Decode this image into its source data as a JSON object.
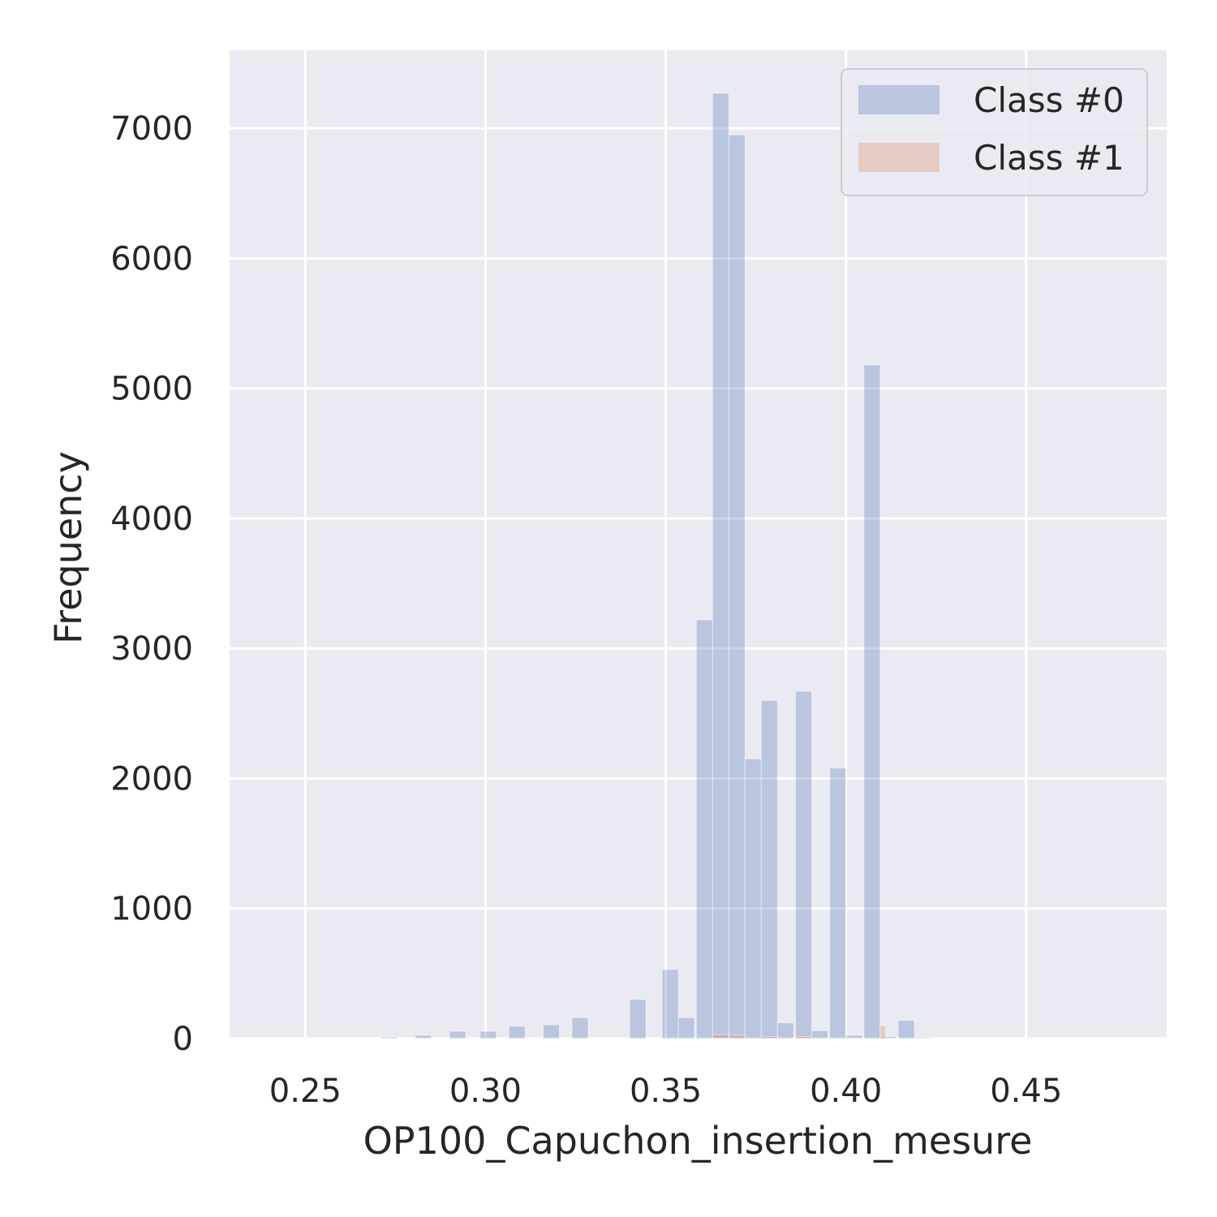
{
  "chart_data": {
    "type": "bar",
    "title": "",
    "xlabel": "OP100_Capuchon_insertion_mesure",
    "ylabel": "Frequency",
    "xlim": [
      0.229,
      0.489
    ],
    "ylim": [
      0,
      7600
    ],
    "xticks": [
      0.25,
      0.3,
      0.35,
      0.4,
      0.45
    ],
    "xtick_labels": [
      "0.25",
      "0.30",
      "0.35",
      "0.40",
      "0.45"
    ],
    "yticks": [
      0,
      1000,
      2000,
      3000,
      4000,
      5000,
      6000,
      7000
    ],
    "ytick_labels": [
      "0",
      "1000",
      "2000",
      "3000",
      "4000",
      "5000",
      "6000",
      "7000"
    ],
    "grid": true,
    "legend": "top-right",
    "series": [
      {
        "name": "Class #0",
        "color": "#4c72b0",
        "opacity": 0.3,
        "bins": [
          {
            "x0": 0.271,
            "x1": 0.2755,
            "y": 10
          },
          {
            "x0": 0.2805,
            "x1": 0.285,
            "y": 25
          },
          {
            "x0": 0.29,
            "x1": 0.2945,
            "y": 55
          },
          {
            "x0": 0.2985,
            "x1": 0.303,
            "y": 55
          },
          {
            "x0": 0.3065,
            "x1": 0.311,
            "y": 95
          },
          {
            "x0": 0.316,
            "x1": 0.3205,
            "y": 105
          },
          {
            "x0": 0.324,
            "x1": 0.3285,
            "y": 160
          },
          {
            "x0": 0.34,
            "x1": 0.3445,
            "y": 300
          },
          {
            "x0": 0.349,
            "x1": 0.3535,
            "y": 530
          },
          {
            "x0": 0.3535,
            "x1": 0.358,
            "y": 160
          },
          {
            "x0": 0.3585,
            "x1": 0.363,
            "y": 3220
          },
          {
            "x0": 0.363,
            "x1": 0.3675,
            "y": 7270
          },
          {
            "x0": 0.3675,
            "x1": 0.372,
            "y": 6950
          },
          {
            "x0": 0.372,
            "x1": 0.3765,
            "y": 2150
          },
          {
            "x0": 0.3765,
            "x1": 0.381,
            "y": 2600
          },
          {
            "x0": 0.381,
            "x1": 0.3855,
            "y": 120
          },
          {
            "x0": 0.386,
            "x1": 0.3905,
            "y": 2670
          },
          {
            "x0": 0.3905,
            "x1": 0.395,
            "y": 60
          },
          {
            "x0": 0.3955,
            "x1": 0.4,
            "y": 2080
          },
          {
            "x0": 0.4,
            "x1": 0.4045,
            "y": 25
          },
          {
            "x0": 0.405,
            "x1": 0.4095,
            "y": 5180
          },
          {
            "x0": 0.4095,
            "x1": 0.414,
            "y": 15
          },
          {
            "x0": 0.4145,
            "x1": 0.419,
            "y": 140
          },
          {
            "x0": 0.419,
            "x1": 0.4235,
            "y": 8
          }
        ]
      },
      {
        "name": "Class #1",
        "color": "#dd8452",
        "opacity": 0.3,
        "bins": [
          {
            "x0": 0.363,
            "x1": 0.3675,
            "y": 30
          },
          {
            "x0": 0.3675,
            "x1": 0.372,
            "y": 25
          },
          {
            "x0": 0.3765,
            "x1": 0.381,
            "y": 15
          },
          {
            "x0": 0.386,
            "x1": 0.3905,
            "y": 15
          },
          {
            "x0": 0.4095,
            "x1": 0.411,
            "y": 100
          }
        ]
      }
    ]
  }
}
